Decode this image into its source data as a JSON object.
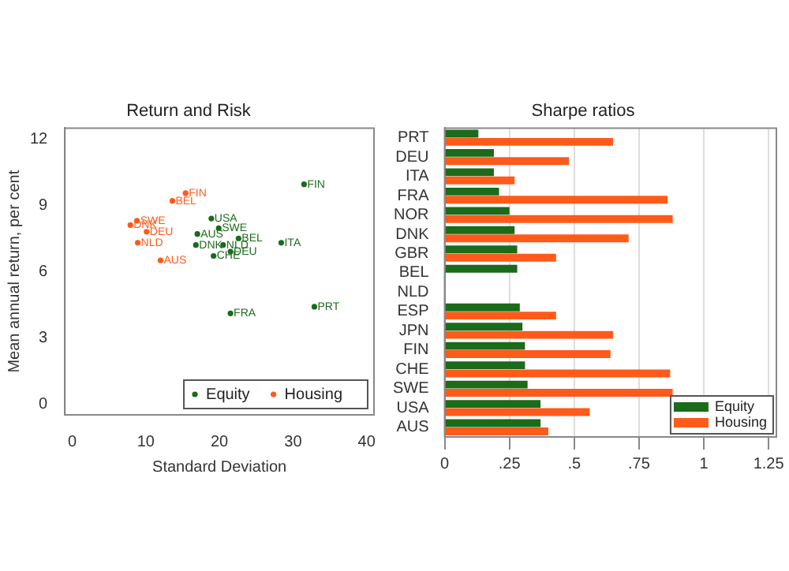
{
  "chart_data": [
    {
      "type": "scatter",
      "title": "Return and Risk",
      "xlabel": "Standard Deviation",
      "ylabel": "Mean annual return, per cent",
      "xlim": [
        -1,
        41
      ],
      "ylim": [
        -0.5,
        12.5
      ],
      "xticks": [
        0,
        10,
        20,
        30,
        40
      ],
      "yticks": [
        0,
        3,
        6,
        9,
        12
      ],
      "grid": false,
      "legend": "bottom right",
      "marker": "circle",
      "series": [
        {
          "name": "Equity",
          "color": "#1a6b1a",
          "x": [
            31.5,
            18.9,
            19.9,
            17.0,
            22.6,
            28.4,
            16.8,
            20.5,
            21.5,
            19.2,
            21.5,
            32.9
          ],
          "values": [
            9.95,
            8.4,
            7.96,
            7.7,
            7.5,
            7.3,
            7.2,
            7.2,
            6.9,
            6.7,
            4.1,
            4.4
          ]
        },
        {
          "name": "Housing",
          "color": "#ff5a1a",
          "x": [
            15.4,
            13.6,
            8.8,
            7.9,
            10.1,
            8.9,
            12.0
          ],
          "values": [
            9.55,
            9.2,
            8.3,
            8.1,
            7.8,
            7.3,
            6.5
          ]
        }
      ],
      "annotations": [
        {
          "text": "FIN",
          "x": 31.5,
          "y": 9.95
        },
        {
          "text": "USA",
          "x": 18.9,
          "y": 8.4
        },
        {
          "text": "SWE",
          "x": 19.9,
          "y": 7.96
        },
        {
          "text": "AUS",
          "x": 17.0,
          "y": 7.7
        },
        {
          "text": "BEL",
          "x": 22.6,
          "y": 7.5
        },
        {
          "text": "ITA",
          "x": 28.4,
          "y": 7.3
        },
        {
          "text": "DNK",
          "x": 16.8,
          "y": 7.2
        },
        {
          "text": "NLD",
          "x": 20.5,
          "y": 7.2
        },
        {
          "text": "DEU",
          "x": 21.5,
          "y": 6.9
        },
        {
          "text": "CHE",
          "x": 19.2,
          "y": 6.7
        },
        {
          "text": "FRA",
          "x": 21.5,
          "y": 4.1
        },
        {
          "text": "PRT",
          "x": 32.9,
          "y": 4.4
        },
        {
          "text": "FIN",
          "x": 15.4,
          "y": 9.55
        },
        {
          "text": "BEL",
          "x": 13.6,
          "y": 9.2
        },
        {
          "text": "SWE",
          "x": 8.8,
          "y": 8.3
        },
        {
          "text": "DNK",
          "x": 7.9,
          "y": 8.1
        },
        {
          "text": "DEU",
          "x": 10.1,
          "y": 7.8
        },
        {
          "text": "NLD",
          "x": 8.9,
          "y": 7.3
        },
        {
          "text": "AUS",
          "x": 12.0,
          "y": 6.5
        }
      ]
    },
    {
      "type": "bar",
      "title": "Sharpe ratios",
      "orientation": "horizontal",
      "grid": "x",
      "legend": "bottom right",
      "categories": [
        "PRT",
        "DEU",
        "ITA",
        "FRA",
        "NOR",
        "DNK",
        "GBR",
        "BEL",
        "NLD",
        "ESP",
        "JPN",
        "FIN",
        "CHE",
        "SWE",
        "USA",
        "AUS"
      ],
      "xlim": [
        0,
        1.28
      ],
      "xticks": [
        0,
        {
          "value": 0.25,
          "label": ".25"
        },
        {
          "value": 0.5,
          "label": ".5"
        },
        {
          "value": 0.75,
          "label": ".75"
        },
        1,
        1.25
      ],
      "series": [
        {
          "name": "Equity",
          "color": "#1a6b1a",
          "values": [
            0.13,
            0.19,
            0.19,
            0.21,
            0.25,
            0.27,
            0.28,
            0.28,
            null,
            0.29,
            0.3,
            0.31,
            0.31,
            0.32,
            0.37,
            0.37
          ]
        },
        {
          "name": "Housing",
          "color": "#ff5a1a",
          "values": [
            0.65,
            0.48,
            0.27,
            0.86,
            0.88,
            0.71,
            0.43,
            null,
            null,
            0.43,
            0.65,
            0.64,
            0.87,
            0.88,
            0.56,
            0.4
          ]
        }
      ]
    }
  ]
}
